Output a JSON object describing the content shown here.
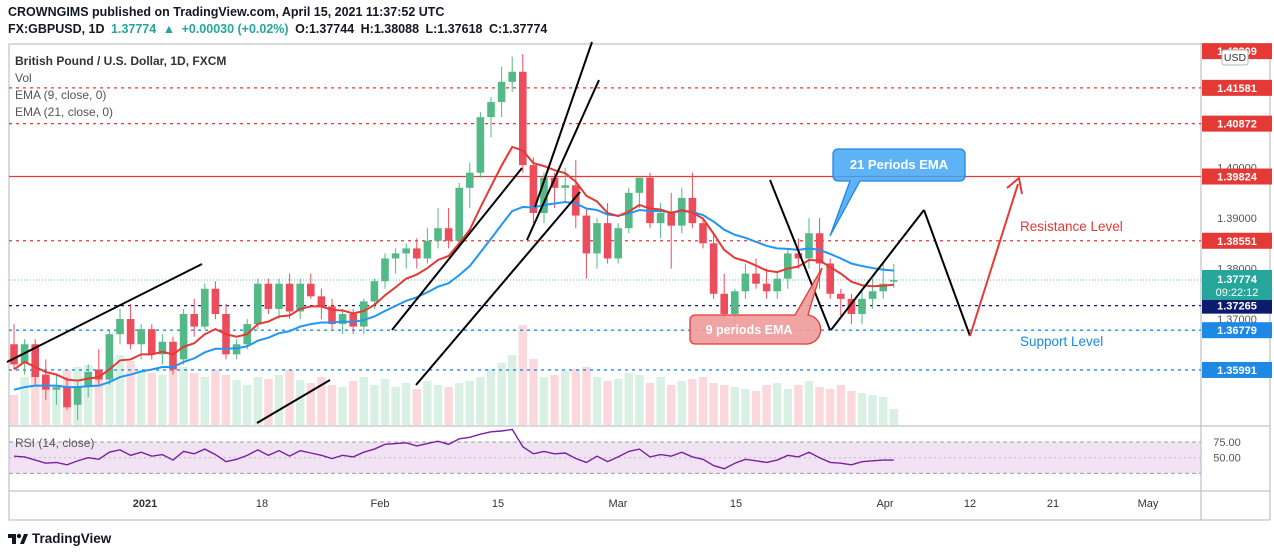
{
  "header": {
    "line1": "CROWNGIMS published on TradingView.com, April 15, 2021 11:37:52 UTC",
    "symbol": "FX:GBPUSD, 1D",
    "last": "1.37774",
    "change": "+0.00030 (+0.02%)",
    "open": "O:1.37744",
    "high": "H:1.38088",
    "low": "L:1.37618",
    "close": "C:1.37774"
  },
  "legend": {
    "title": "British Pound / U.S. Dollar, 1D, FXCM",
    "vol": "Vol",
    "ema9": "EMA (9, close, 0)",
    "ema21": "EMA (21, close, 0)",
    "rsi": "RSI (14, close)"
  },
  "price_axis": {
    "currency": "USD",
    "ticks": [
      "1.42309",
      "1.41581",
      "1.40872",
      "1.40000",
      "1.39824",
      "1.39000",
      "1.38551",
      "1.38000",
      "1.37265",
      "1.37000",
      "1.36779",
      "1.35991"
    ],
    "countdown": "09:22:12",
    "last_price": "1.37774"
  },
  "rsi_axis": {
    "ticks": [
      "75.00",
      "50.00"
    ]
  },
  "time_axis": {
    "ticks": [
      "2021",
      "18",
      "Feb",
      "15",
      "Mar",
      "15",
      "Apr",
      "12",
      "21",
      "May"
    ]
  },
  "annotations": {
    "ema21_callout": "21 Periods EMA",
    "ema9_callout": "9 periods EMA",
    "resistance": "Resistance Level",
    "support": "Support Level"
  },
  "footer": {
    "brand": "TradingView"
  },
  "colors": {
    "bull": "#53b987",
    "bear": "#eb4d5c",
    "ema9": "#e53935",
    "ema21": "#2196f3",
    "rsi": "#7b1fa2",
    "rsi_band": "#e1bee7",
    "hline_red": "#e53935",
    "hline_blue": "#1e88e5",
    "hline_navy": "#0d1b6e",
    "callout_blue": "#64b5f6",
    "callout_red": "#ef9a9a"
  },
  "chart_data": {
    "type": "candlestick",
    "title": "British Pound / U.S. Dollar, 1D, FXCM",
    "symbol": "FX:GBPUSD",
    "timeframe": "1D",
    "price_levels": {
      "resistance": [
        1.41581,
        1.40872,
        1.39824,
        1.38551
      ],
      "support": [
        1.37265,
        1.36779,
        1.35991
      ],
      "current": 1.37774
    },
    "candles": [
      [
        1.365,
        1.369,
        1.36,
        1.361
      ],
      [
        1.3612,
        1.366,
        1.359,
        1.365
      ],
      [
        1.365,
        1.366,
        1.357,
        1.3585
      ],
      [
        1.359,
        1.362,
        1.354,
        1.356
      ],
      [
        1.356,
        1.359,
        1.353,
        1.3565
      ],
      [
        1.3565,
        1.3585,
        1.352,
        1.3525
      ],
      [
        1.353,
        1.3575,
        1.35,
        1.3565
      ],
      [
        1.3565,
        1.361,
        1.3545,
        1.3595
      ],
      [
        1.36,
        1.364,
        1.357,
        1.358
      ],
      [
        1.358,
        1.368,
        1.357,
        1.367
      ],
      [
        1.367,
        1.372,
        1.365,
        1.37
      ],
      [
        1.37,
        1.373,
        1.364,
        1.365
      ],
      [
        1.365,
        1.369,
        1.362,
        1.368
      ],
      [
        1.368,
        1.369,
        1.362,
        1.363
      ],
      [
        1.363,
        1.367,
        1.361,
        1.3655
      ],
      [
        1.3655,
        1.3665,
        1.359,
        1.36
      ],
      [
        1.362,
        1.372,
        1.361,
        1.371
      ],
      [
        1.371,
        1.374,
        1.3665,
        1.3685
      ],
      [
        1.3685,
        1.377,
        1.368,
        1.376
      ],
      [
        1.376,
        1.3775,
        1.37,
        1.371
      ],
      [
        1.371,
        1.373,
        1.362,
        1.363
      ],
      [
        1.363,
        1.366,
        1.362,
        1.365
      ],
      [
        1.365,
        1.37,
        1.364,
        1.369
      ],
      [
        1.369,
        1.378,
        1.368,
        1.377
      ],
      [
        1.377,
        1.378,
        1.371,
        1.372
      ],
      [
        1.372,
        1.378,
        1.37,
        1.377
      ],
      [
        1.377,
        1.379,
        1.37,
        1.3715
      ],
      [
        1.3715,
        1.378,
        1.37,
        1.377
      ],
      [
        1.377,
        1.379,
        1.374,
        1.3745
      ],
      [
        1.3745,
        1.376,
        1.37,
        1.3725
      ],
      [
        1.3725,
        1.374,
        1.368,
        1.369
      ],
      [
        1.369,
        1.372,
        1.367,
        1.371
      ],
      [
        1.371,
        1.372,
        1.367,
        1.3685
      ],
      [
        1.3685,
        1.374,
        1.367,
        1.3735
      ],
      [
        1.3735,
        1.378,
        1.372,
        1.3775
      ],
      [
        1.3775,
        1.383,
        1.376,
        1.382
      ],
      [
        1.382,
        1.384,
        1.379,
        1.383
      ],
      [
        1.383,
        1.385,
        1.38,
        1.384
      ],
      [
        1.384,
        1.386,
        1.38,
        1.382
      ],
      [
        1.382,
        1.388,
        1.381,
        1.3855
      ],
      [
        1.3855,
        1.392,
        1.384,
        1.388
      ],
      [
        1.388,
        1.392,
        1.384,
        1.3855
      ],
      [
        1.3855,
        1.397,
        1.384,
        1.396
      ],
      [
        1.396,
        1.401,
        1.392,
        1.399
      ],
      [
        1.399,
        1.411,
        1.398,
        1.41
      ],
      [
        1.41,
        1.414,
        1.406,
        1.413
      ],
      [
        1.413,
        1.42,
        1.41,
        1.417
      ],
      [
        1.417,
        1.422,
        1.415,
        1.419
      ],
      [
        1.419,
        1.4225,
        1.399,
        1.4005
      ],
      [
        1.4005,
        1.402,
        1.389,
        1.391
      ],
      [
        1.391,
        1.399,
        1.389,
        1.398
      ],
      [
        1.398,
        1.399,
        1.392,
        1.396
      ],
      [
        1.396,
        1.4,
        1.393,
        1.3965
      ],
      [
        1.3965,
        1.4015,
        1.388,
        1.3905
      ],
      [
        1.3905,
        1.392,
        1.378,
        1.383
      ],
      [
        1.383,
        1.39,
        1.38,
        1.389
      ],
      [
        1.389,
        1.393,
        1.381,
        1.382
      ],
      [
        1.382,
        1.389,
        1.381,
        1.388
      ],
      [
        1.388,
        1.396,
        1.387,
        1.395
      ],
      [
        1.395,
        1.398,
        1.392,
        1.398
      ],
      [
        1.398,
        1.399,
        1.388,
        1.389
      ],
      [
        1.389,
        1.393,
        1.386,
        1.391
      ],
      [
        1.391,
        1.395,
        1.38,
        1.3885
      ],
      [
        1.3885,
        1.396,
        1.387,
        1.394
      ],
      [
        1.394,
        1.399,
        1.388,
        1.389
      ],
      [
        1.389,
        1.39,
        1.384,
        1.385
      ],
      [
        1.385,
        1.387,
        1.374,
        1.375
      ],
      [
        1.375,
        1.379,
        1.37,
        1.371
      ],
      [
        1.371,
        1.376,
        1.369,
        1.3755
      ],
      [
        1.3755,
        1.381,
        1.374,
        1.379
      ],
      [
        1.379,
        1.382,
        1.376,
        1.377
      ],
      [
        1.377,
        1.38,
        1.374,
        1.3755
      ],
      [
        1.3755,
        1.3795,
        1.374,
        1.378
      ],
      [
        1.378,
        1.384,
        1.376,
        1.383
      ],
      [
        1.383,
        1.386,
        1.38,
        1.382
      ],
      [
        1.382,
        1.39,
        1.38,
        1.387
      ],
      [
        1.387,
        1.39,
        1.376,
        1.381
      ],
      [
        1.381,
        1.382,
        1.374,
        1.375
      ],
      [
        1.375,
        1.376,
        1.37,
        1.374
      ],
      [
        1.374,
        1.375,
        1.369,
        1.371
      ],
      [
        1.371,
        1.376,
        1.369,
        1.374
      ],
      [
        1.374,
        1.378,
        1.372,
        1.3755
      ],
      [
        1.3755,
        1.381,
        1.374,
        1.377
      ],
      [
        1.3774,
        1.3809,
        1.3762,
        1.3777
      ]
    ],
    "ema9": [
      1.36,
      1.3615,
      1.3605,
      1.3595,
      1.359,
      1.358,
      1.3578,
      1.3582,
      1.3585,
      1.36,
      1.3618,
      1.362,
      1.363,
      1.363,
      1.3635,
      1.363,
      1.3645,
      1.3652,
      1.367,
      1.368,
      1.367,
      1.3665,
      1.367,
      1.369,
      1.3695,
      1.3705,
      1.3707,
      1.372,
      1.3725,
      1.3725,
      1.3718,
      1.3717,
      1.3711,
      1.3716,
      1.3728,
      1.3747,
      1.3763,
      1.378,
      1.3788,
      1.3801,
      1.3817,
      1.3825,
      1.385,
      1.3877,
      1.3921,
      1.3963,
      1.4004,
      1.4041,
      1.4034,
      1.4009,
      1.4003,
      1.3995,
      1.3989,
      1.3972,
      1.3944,
      1.3933,
      1.391,
      1.3904,
      1.3913,
      1.3926,
      1.3919,
      1.3917,
      1.391,
      1.3916,
      1.3911,
      1.3899,
      1.3869,
      1.3837,
      1.3821,
      1.3815,
      1.3806,
      1.3796,
      1.3793,
      1.38,
      1.3804,
      1.3817,
      1.3816,
      1.3803,
      1.379,
      1.3774,
      1.3767,
      1.3765,
      1.3766,
      1.3768
    ],
    "ema21": [
      1.356,
      1.3565,
      1.3568,
      1.3568,
      1.3568,
      1.3565,
      1.3565,
      1.3567,
      1.3568,
      1.3575,
      1.3585,
      1.359,
      1.3596,
      1.36,
      1.3605,
      1.3605,
      1.3615,
      1.3622,
      1.3634,
      1.3641,
      1.3641,
      1.3642,
      1.3646,
      1.3657,
      1.3663,
      1.3672,
      1.3676,
      1.3685,
      1.369,
      1.3693,
      1.3693,
      1.3695,
      1.3694,
      1.3698,
      1.3705,
      1.3716,
      1.3726,
      1.3736,
      1.3743,
      1.3753,
      1.3764,
      1.3771,
      1.3787,
      1.3805,
      1.3832,
      1.3859,
      1.3887,
      1.3914,
      1.3922,
      1.3921,
      1.3926,
      1.3929,
      1.3932,
      1.3929,
      1.3919,
      1.3916,
      1.3907,
      1.3905,
      1.3909,
      1.3916,
      1.3914,
      1.3914,
      1.3911,
      1.3914,
      1.3912,
      1.3906,
      1.3893,
      1.3877,
      1.3867,
      1.3861,
      1.3853,
      1.3845,
      1.384,
      1.3839,
      1.3837,
      1.384,
      1.3837,
      1.3829,
      1.382,
      1.381,
      1.3805,
      1.3801,
      1.3798,
      1.3796
    ],
    "rsi": [
      52,
      51,
      47,
      43,
      44,
      41,
      46,
      50,
      48,
      57,
      60,
      53,
      57,
      52,
      54,
      47,
      58,
      55,
      61,
      54,
      45,
      48,
      53,
      60,
      53,
      59,
      52,
      59,
      56,
      53,
      49,
      53,
      51,
      57,
      61,
      67,
      68,
      69,
      65,
      68,
      71,
      67,
      74,
      76,
      80,
      83,
      84,
      86,
      64,
      55,
      58,
      55,
      56,
      49,
      44,
      52,
      45,
      51,
      58,
      61,
      51,
      54,
      52,
      57,
      51,
      48,
      40,
      36,
      43,
      48,
      46,
      44,
      47,
      53,
      51,
      57,
      50,
      44,
      43,
      41,
      45,
      46,
      47,
      47
    ]
  }
}
